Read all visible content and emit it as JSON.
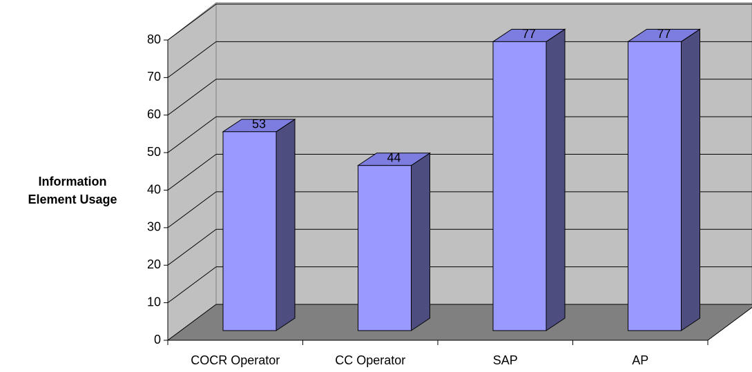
{
  "chart_data": {
    "type": "bar",
    "y_label": "Information Element Usage",
    "categories": [
      "COCR Operator",
      "CC Operator",
      "SAP",
      "AP"
    ],
    "values": [
      53,
      44,
      77,
      77
    ],
    "color": "#9999ff",
    "ylim": [
      0,
      80
    ],
    "yticks": [
      0,
      10,
      20,
      30,
      40,
      50,
      60,
      70,
      80
    ],
    "grid": true
  }
}
